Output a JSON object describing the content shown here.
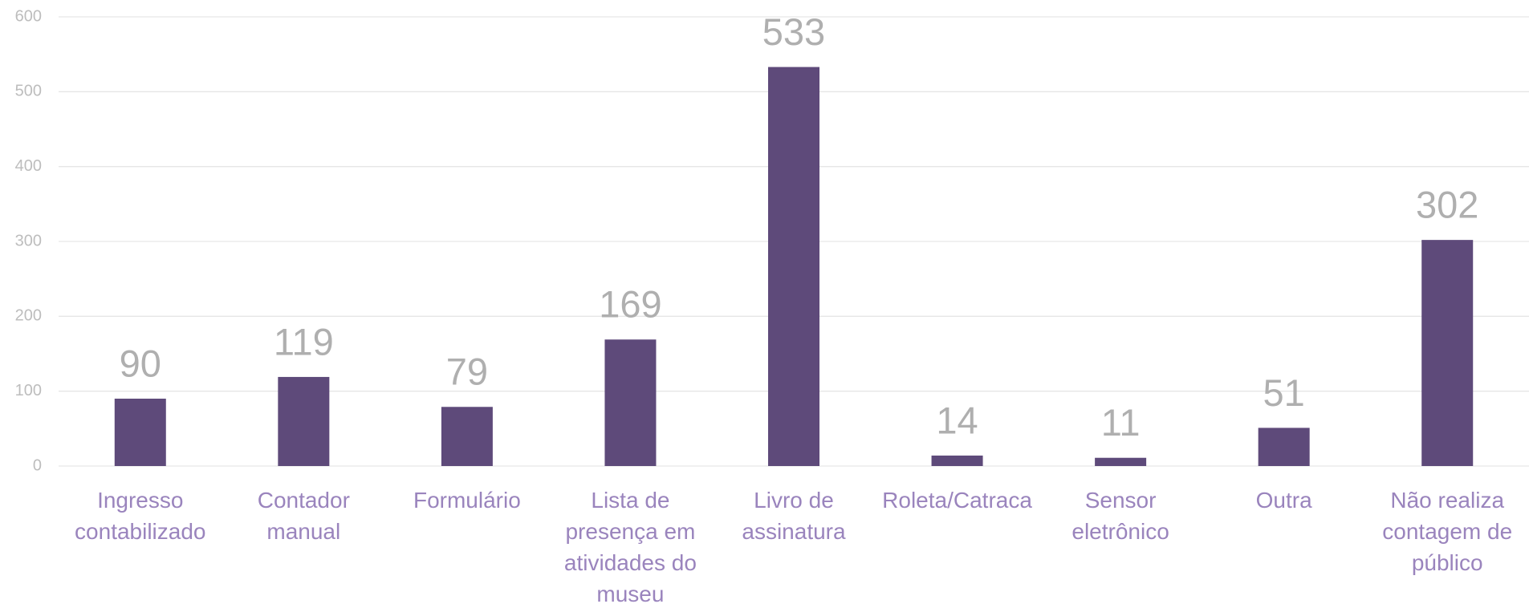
{
  "chart_data": {
    "type": "bar",
    "categories": [
      "Ingresso contabilizado",
      "Contador manual",
      "Formulário",
      "Lista de presença em atividades do museu",
      "Livro de assinatura",
      "Roleta/Catraca",
      "Sensor eletrônico",
      "Outra",
      "Não realiza contagem de público"
    ],
    "values": [
      90,
      119,
      79,
      169,
      533,
      14,
      11,
      51,
      302
    ],
    "color": "#5e4a7a",
    "ylim": [
      0,
      600
    ],
    "yticks": [
      0,
      100,
      200,
      300,
      400,
      500,
      600
    ],
    "grid": true
  }
}
